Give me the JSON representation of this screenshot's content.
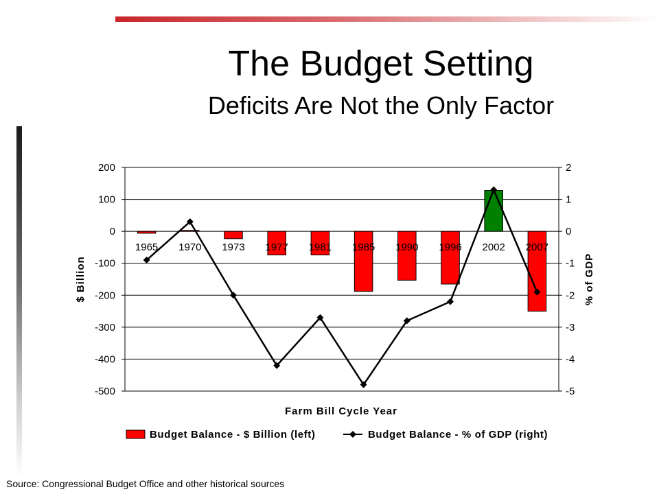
{
  "slide": {
    "title": "The Budget Setting",
    "subtitle": "Deficits Are Not the Only Factor",
    "source": "Source: Congressional Budget Office and other historical sources",
    "accent_color": "#c8262b"
  },
  "chart_data": {
    "type": "bar",
    "categories": [
      "1965",
      "1970",
      "1973",
      "1977",
      "1981",
      "1985",
      "1990",
      "1996",
      "2002",
      "2007"
    ],
    "series": [
      {
        "name": "Budget Balance - $ Billion (left)",
        "type": "bar",
        "axis": "left",
        "values": [
          -6,
          3,
          -23,
          -74,
          -74,
          -188,
          -153,
          -165,
          128,
          -250
        ],
        "color": "#ff0000",
        "highlight": {
          "index": 8,
          "color": "#008000"
        }
      },
      {
        "name": "Budget Balance - % of GDP (right)",
        "type": "line",
        "axis": "right",
        "values": [
          -0.9,
          0.3,
          -2.0,
          -4.2,
          -2.7,
          -4.8,
          -2.8,
          -2.2,
          1.3,
          -1.9
        ],
        "color": "#000000",
        "marker": "diamond"
      }
    ],
    "xlabel": "Farm Bill Cycle Year",
    "ylabel": "$ Billion",
    "y2label": "% of GDP",
    "ylim": [
      -500,
      200
    ],
    "y2lim": [
      -5,
      2
    ],
    "yticks": [
      200,
      100,
      0,
      -100,
      -200,
      -300,
      -400,
      -500
    ],
    "y2ticks": [
      2,
      1,
      0,
      -1,
      -2,
      -3,
      -4,
      -5
    ],
    "grid": true,
    "legend": "bottom"
  }
}
